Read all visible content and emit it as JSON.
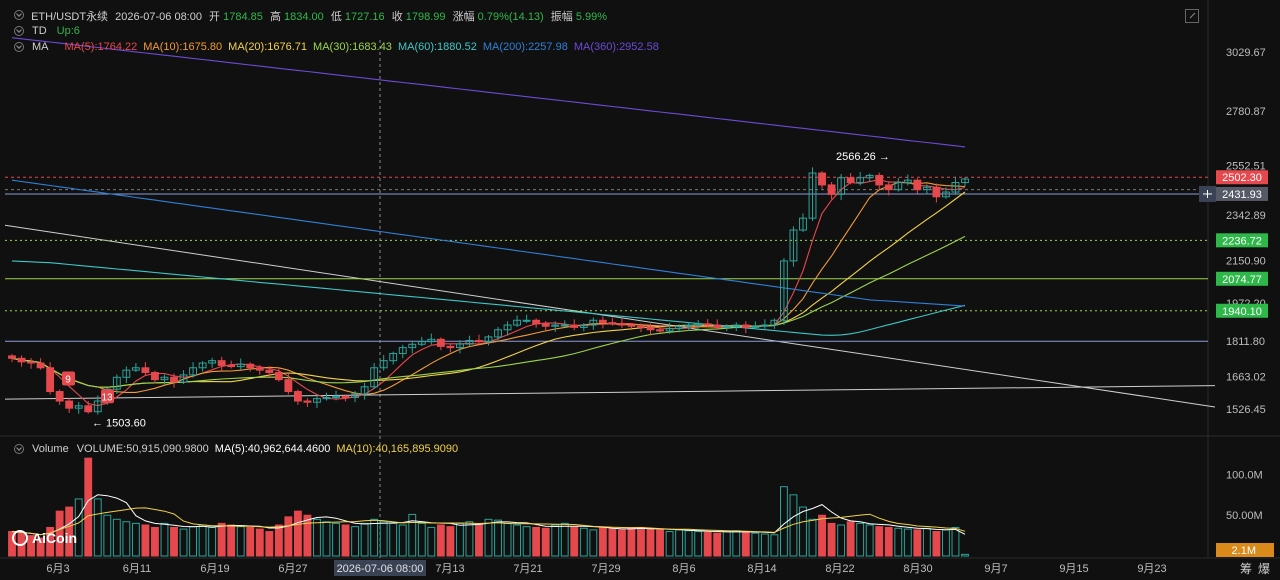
{
  "header": {
    "symbol": "ETH/USDT永续",
    "datetime": "2026-07-06 08:00",
    "open_label": "开",
    "open": "1784.85",
    "high_label": "高",
    "high": "1834.00",
    "low_label": "低",
    "low": "1727.16",
    "close_label": "收",
    "close": "1798.99",
    "change_label": "涨幅",
    "change": "0.79%(14.13)",
    "amp_label": "振幅",
    "amp": "5.99%"
  },
  "indicators": {
    "td": {
      "name": "TD",
      "value": "Up:6"
    },
    "ma": {
      "name": "MA",
      "items": [
        {
          "text": "MA(5):1764.22",
          "color": "#e5484d"
        },
        {
          "text": "MA(10):1675.80",
          "color": "#f29a38"
        },
        {
          "text": "MA(20):1676.71",
          "color": "#f2d24a"
        },
        {
          "text": "MA(30):1683.43",
          "color": "#9cd44c"
        },
        {
          "text": "MA(60):1880.52",
          "color": "#3fc6c6"
        },
        {
          "text": "MA(200):2257.98",
          "color": "#2f7fd6"
        },
        {
          "text": "MA(360):2952.58",
          "color": "#6c4bd6"
        }
      ]
    },
    "volume": {
      "name": "Volume",
      "items": [
        {
          "text": "VOLUME:50,915,090.9800",
          "color": "#cfcfcf"
        },
        {
          "text": "MA(5):40,962,644.4600",
          "color": "#ffffff"
        },
        {
          "text": "MA(10):40,165,895.9090",
          "color": "#f2d24a"
        }
      ]
    }
  },
  "logo": "AiCoin",
  "bottom_right": {
    "a": "筹",
    "b": "爆"
  },
  "chart_data": {
    "type": "candlestick",
    "x_ticks": [
      "6月3",
      "6月11",
      "6月19",
      "6月27",
      "7月13",
      "7月21",
      "7月29",
      "8月6",
      "8月14",
      "8月22",
      "8月30",
      "9月7",
      "9月15",
      "9月23"
    ],
    "crosshair_date": "2026-07-06 08:00",
    "y_ticks": [
      "3029.67",
      "2780.87",
      "2552.51",
      "2342.89",
      "2150.90",
      "1972.20",
      "1811.80",
      "1663.02",
      "1526.45"
    ],
    "price_tags": [
      {
        "value": "2502.30",
        "color": "#e5484d"
      },
      {
        "value": "2431.93",
        "color": "#555a66"
      },
      {
        "value": "2236.72",
        "color": "#2fb84a"
      },
      {
        "value": "2074.77",
        "color": "#2fb84a"
      },
      {
        "value": "1940.10",
        "color": "#2fb84a"
      }
    ],
    "annotations": [
      {
        "text": "2566.26 →",
        "value": 2566.26
      },
      {
        "text": "← 1503.60",
        "value": 1503.6
      }
    ],
    "td_markers": [
      "9",
      "13"
    ],
    "closes": [
      1740,
      1725,
      1720,
      1700,
      1600,
      1560,
      1530,
      1540,
      1515,
      1560,
      1610,
      1660,
      1690,
      1700,
      1680,
      1650,
      1660,
      1640,
      1670,
      1700,
      1720,
      1730,
      1710,
      1705,
      1715,
      1700,
      1690,
      1680,
      1650,
      1600,
      1560,
      1555,
      1570,
      1575,
      1580,
      1575,
      1590,
      1620,
      1700,
      1730,
      1760,
      1785,
      1799,
      1810,
      1820,
      1790,
      1785,
      1800,
      1815,
      1810,
      1830,
      1860,
      1880,
      1900,
      1900,
      1885,
      1875,
      1880,
      1880,
      1870,
      1880,
      1900,
      1890,
      1885,
      1880,
      1875,
      1870,
      1860,
      1855,
      1865,
      1875,
      1880,
      1885,
      1880,
      1870,
      1875,
      1880,
      1870,
      1875,
      1880,
      1900,
      2150,
      2280,
      2330,
      2520,
      2470,
      2430,
      2500,
      2480,
      2500,
      2510,
      2470,
      2450,
      2480,
      2490,
      2450,
      2460,
      2420,
      2440,
      2480,
      2495
    ],
    "volume": {
      "y_ticks": [
        "100.0M",
        "50.00M"
      ],
      "last_tag": "2.1M",
      "values": [
        30,
        28,
        25,
        22,
        35,
        55,
        60,
        70,
        120,
        70,
        50,
        45,
        42,
        40,
        38,
        35,
        40,
        35,
        33,
        36,
        38,
        35,
        40,
        38,
        36,
        35,
        33,
        30,
        38,
        48,
        55,
        50,
        45,
        42,
        40,
        38,
        36,
        40,
        45,
        42,
        40,
        38,
        51,
        40,
        35,
        38,
        36,
        40,
        42,
        38,
        45,
        44,
        40,
        38,
        36,
        35,
        34,
        38,
        40,
        36,
        34,
        32,
        35,
        33,
        32,
        34,
        35,
        33,
        32,
        30,
        32,
        31,
        30,
        29,
        28,
        30,
        31,
        30,
        28,
        27,
        26,
        85,
        75,
        60,
        45,
        50,
        40,
        38,
        42,
        40,
        38,
        36,
        35,
        34,
        33,
        32,
        34,
        30,
        32,
        35,
        2
      ]
    }
  }
}
